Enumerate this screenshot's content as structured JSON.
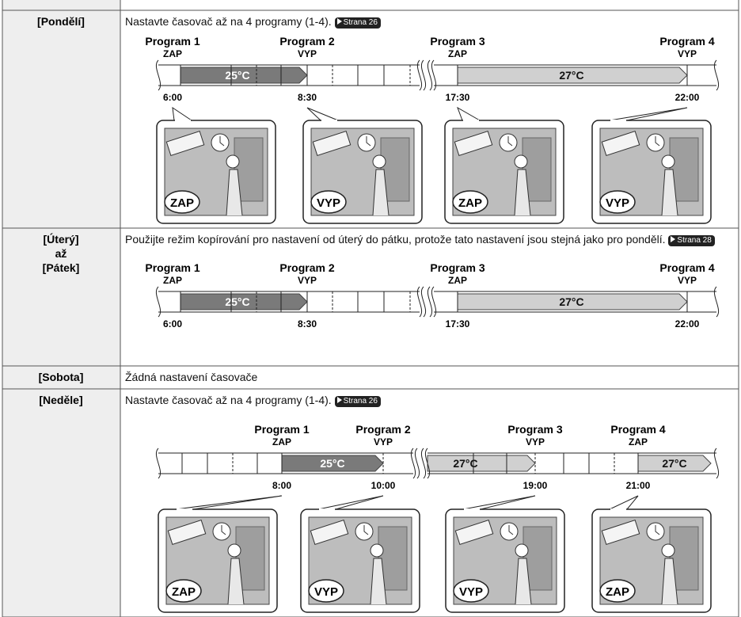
{
  "rows": [
    {
      "day_lines": [
        "[Pondělí]"
      ],
      "text": "Nastavte časovač až na 4 programy (1-4).",
      "link": "Strana 26",
      "timeline": {
        "programs": [
          {
            "name": "Program 1",
            "state": "ZAP",
            "time": "6:00"
          },
          {
            "name": "Program 2",
            "state": "VYP",
            "time": "8:30"
          },
          {
            "name": "Program 3",
            "state": "ZAP",
            "time": "17:30"
          },
          {
            "name": "Program 4",
            "state": "VYP",
            "time": "22:00"
          }
        ],
        "temperatures": [
          "25°C",
          "27°C"
        ]
      },
      "illustrations": [
        "ZAP",
        "VYP",
        "ZAP",
        "VYP"
      ]
    },
    {
      "day_lines": [
        "[Úterý]",
        "až",
        "[Pátek]"
      ],
      "text": "Použijte režim kopírování pro nastavení od úterý do pátku, protože tato nastavení jsou stejná jako pro pondělí.",
      "link": "Strana 28",
      "timeline": {
        "programs": [
          {
            "name": "Program 1",
            "state": "ZAP",
            "time": "6:00"
          },
          {
            "name": "Program 2",
            "state": "VYP",
            "time": "8:30"
          },
          {
            "name": "Program 3",
            "state": "ZAP",
            "time": "17:30"
          },
          {
            "name": "Program 4",
            "state": "VYP",
            "time": "22:00"
          }
        ],
        "temperatures": [
          "25°C",
          "27°C"
        ]
      },
      "illustrations": []
    },
    {
      "day_lines": [
        "[Sobota]"
      ],
      "text": "Žádná nastavení časovače"
    },
    {
      "day_lines": [
        "[Neděle]"
      ],
      "text": "Nastavte časovač až na 4 programy (1-4).",
      "link": "Strana 26",
      "timeline": {
        "programs": [
          {
            "name": "Program 1",
            "state": "ZAP",
            "time": "8:00"
          },
          {
            "name": "Program 2",
            "state": "VYP",
            "time": "10:00"
          },
          {
            "name": "Program 3",
            "state": "VYP",
            "time": "19:00"
          },
          {
            "name": "Program 4",
            "state": "ZAP",
            "time": "21:00"
          }
        ],
        "temperatures": [
          "25°C",
          "27°C",
          "27°C"
        ]
      },
      "illustrations": [
        "ZAP",
        "VYP",
        "VYP",
        "ZAP"
      ]
    }
  ]
}
